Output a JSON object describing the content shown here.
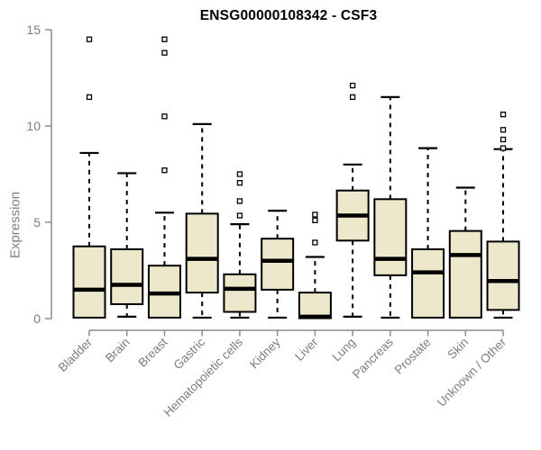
{
  "chart_data": {
    "type": "box",
    "title": "ENSG00000108342 - CSF3",
    "ylabel": "Expression",
    "xlabel": "",
    "ylim": [
      0,
      15
    ],
    "yticks": [
      0,
      5,
      10,
      15
    ],
    "grid": false,
    "legend": null,
    "categories": [
      "Bladder",
      "Brain",
      "Breast",
      "Gastric",
      "Hematopoietic cells",
      "Kidney",
      "Liver",
      "Lung",
      "Pancreas",
      "Prostate",
      "Skin",
      "Unknown / Other"
    ],
    "series": [
      {
        "name": "Bladder",
        "whisker_low": 0.05,
        "q1": 0.05,
        "median": 1.5,
        "q3": 3.75,
        "whisker_high": 8.6,
        "outliers": [
          11.5,
          14.5
        ]
      },
      {
        "name": "Brain",
        "whisker_low": 0.1,
        "q1": 0.75,
        "median": 1.75,
        "q3": 3.6,
        "whisker_high": 7.55,
        "outliers": []
      },
      {
        "name": "Breast",
        "whisker_low": 0.05,
        "q1": 0.05,
        "median": 1.3,
        "q3": 2.75,
        "whisker_high": 5.5,
        "outliers": [
          7.7,
          10.5,
          13.8,
          14.5
        ]
      },
      {
        "name": "Gastric",
        "whisker_low": 0.05,
        "q1": 1.35,
        "median": 3.1,
        "q3": 5.45,
        "whisker_high": 10.1,
        "outliers": []
      },
      {
        "name": "Hematopoietic cells",
        "whisker_low": 0.05,
        "q1": 0.35,
        "median": 1.55,
        "q3": 2.3,
        "whisker_high": 4.9,
        "outliers": [
          5.35,
          6.1,
          7.05,
          7.5
        ]
      },
      {
        "name": "Kidney",
        "whisker_low": 0.05,
        "q1": 1.5,
        "median": 3.0,
        "q3": 4.15,
        "whisker_high": 5.6,
        "outliers": []
      },
      {
        "name": "Liver",
        "whisker_low": 0.02,
        "q1": 0.02,
        "median": 0.1,
        "q3": 1.35,
        "whisker_high": 3.2,
        "outliers": [
          3.95,
          5.1,
          5.4
        ]
      },
      {
        "name": "Lung",
        "whisker_low": 0.1,
        "q1": 4.05,
        "median": 5.35,
        "q3": 6.65,
        "whisker_high": 8.0,
        "outliers": [
          11.5,
          12.1
        ]
      },
      {
        "name": "Pancreas",
        "whisker_low": 0.05,
        "q1": 2.25,
        "median": 3.1,
        "q3": 6.2,
        "whisker_high": 11.5,
        "outliers": []
      },
      {
        "name": "Prostate",
        "whisker_low": 0.05,
        "q1": 0.05,
        "median": 2.4,
        "q3": 3.6,
        "whisker_high": 8.85,
        "outliers": []
      },
      {
        "name": "Skin",
        "whisker_low": 0.05,
        "q1": 0.05,
        "median": 3.3,
        "q3": 4.55,
        "whisker_high": 6.8,
        "outliers": []
      },
      {
        "name": "Unknown / Other",
        "whisker_low": 0.05,
        "q1": 0.45,
        "median": 1.95,
        "q3": 4.0,
        "whisker_high": 8.8,
        "outliers": [
          8.85,
          9.3,
          9.8,
          10.6
        ]
      }
    ],
    "colors": {
      "box_fill": "#ede8cb",
      "box_border": "#000000",
      "median": "#000000",
      "whisker": "#000000",
      "outlier_stroke": "#000000",
      "outlier_fill": "#ffffff",
      "axis": "#8c8c8c",
      "tick_label": "#7d7d7d",
      "title": "#000000",
      "background": "#ffffff"
    }
  }
}
